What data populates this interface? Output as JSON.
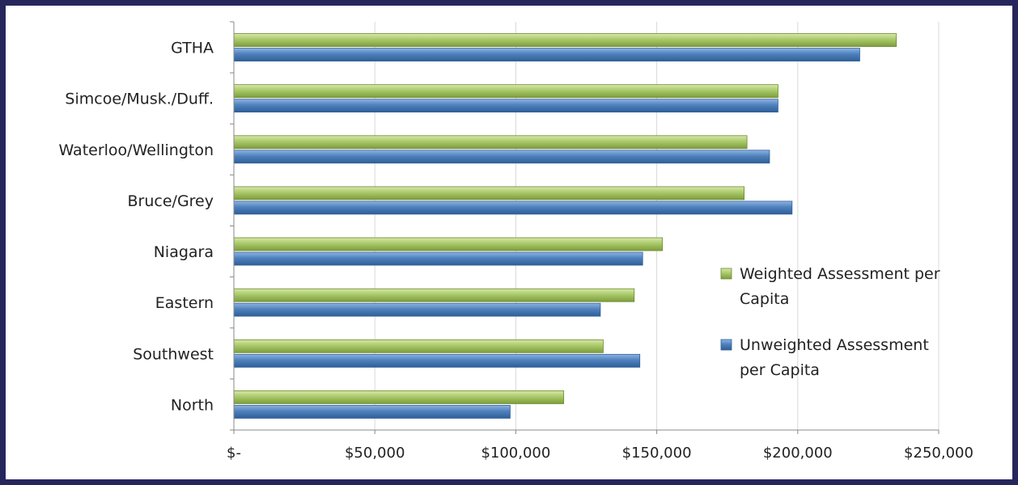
{
  "chart_data": {
    "type": "bar",
    "orientation": "horizontal",
    "categories": [
      "GTHA",
      "Simcoe/Musk./Duff.",
      "Waterloo/Wellington",
      "Bruce/Grey",
      "Niagara",
      "Eastern",
      "Southwest",
      "North"
    ],
    "series": [
      {
        "name": "Weighted Assessment per Capita",
        "color": "#9bbb59",
        "values": [
          235000,
          193000,
          182000,
          181000,
          152000,
          142000,
          131000,
          117000
        ]
      },
      {
        "name": "Unweighted Assessment per Capita",
        "color": "#4f81bd",
        "values": [
          222000,
          193000,
          190000,
          198000,
          145000,
          130000,
          144000,
          98000
        ]
      }
    ],
    "xlim": [
      0,
      250000
    ],
    "x_ticks": [
      0,
      50000,
      100000,
      150000,
      200000,
      250000
    ],
    "x_tick_labels": [
      "$-",
      "$50,000",
      "$100,000",
      "$150,000",
      "$200,000",
      "$250,000"
    ],
    "grid": "vertical",
    "legend": "right"
  },
  "legend": {
    "weighted_line1": "Weighted Assessment per",
    "weighted_line2": "Capita",
    "unweighted_line1": "Unweighted Assessment",
    "unweighted_line2": "per Capita"
  }
}
